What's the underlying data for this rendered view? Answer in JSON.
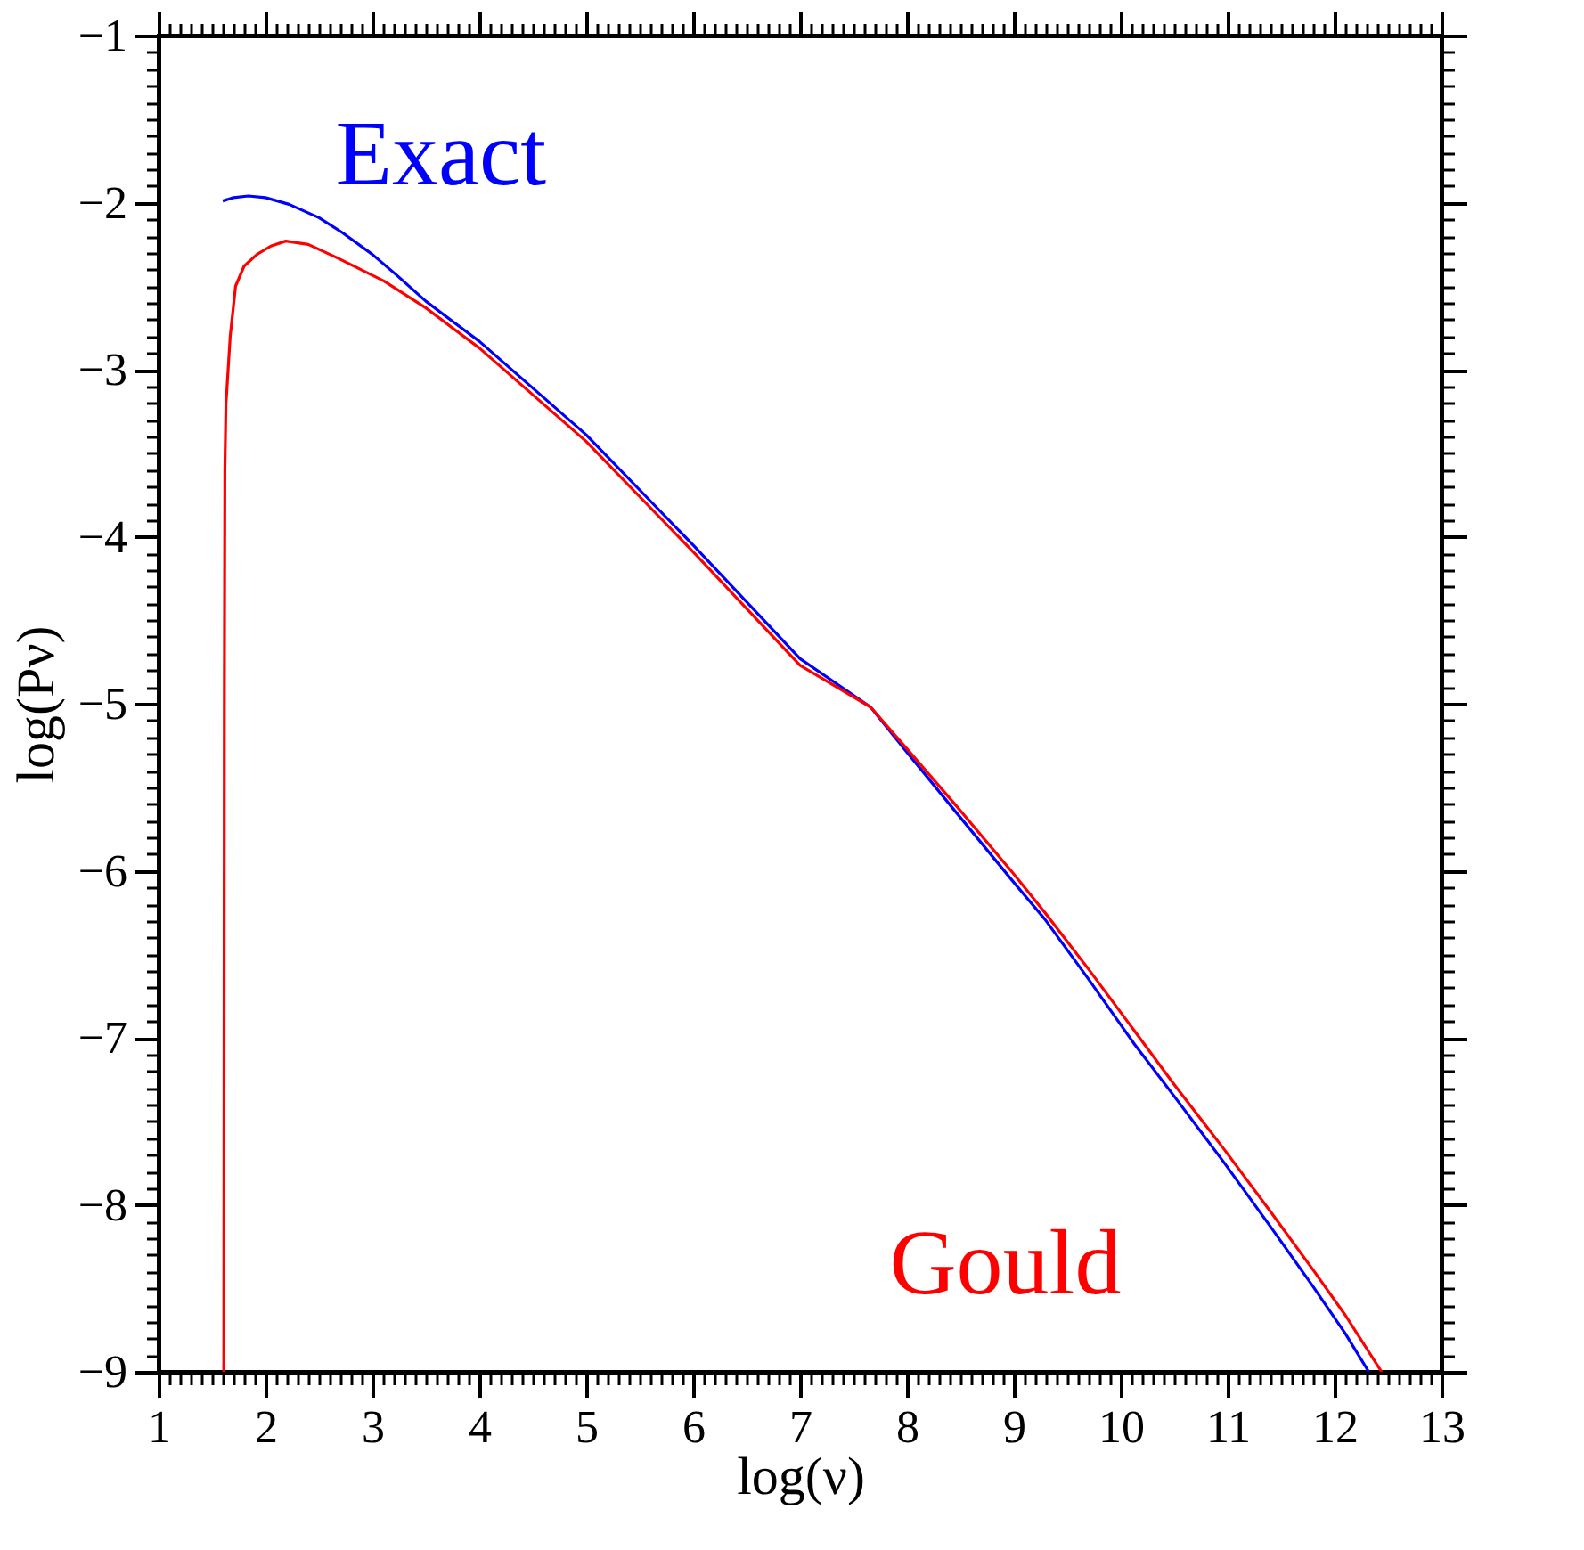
{
  "chart_data": {
    "type": "line",
    "xlabel": "log(ν)",
    "ylabel": "log(Pν)",
    "xlim": [
      1,
      13
    ],
    "ylim": [
      -9,
      -1
    ],
    "xticks": [
      1,
      2,
      3,
      4,
      5,
      6,
      7,
      8,
      9,
      10,
      11,
      12,
      13,
      {
        "value": 1.1,
        "label": null
      },
      {
        "value": 1.2,
        "label": null
      },
      {
        "value": 1.3,
        "label": null
      },
      {
        "value": 1.4,
        "label": null
      },
      {
        "value": 1.5,
        "label": null
      },
      {
        "value": 1.6,
        "label": null
      },
      {
        "value": 1.7,
        "label": null
      },
      {
        "value": 1.8,
        "label": null
      },
      {
        "value": 1.9,
        "label": null
      },
      {
        "value": 2.1,
        "label": null
      },
      {
        "value": 2.2,
        "label": null
      },
      {
        "value": 2.3,
        "label": null
      },
      {
        "value": 2.4,
        "label": null
      },
      {
        "value": 2.5,
        "label": null
      },
      {
        "value": 2.6,
        "label": null
      },
      {
        "value": 2.7,
        "label": null
      },
      {
        "value": 2.8,
        "label": null
      },
      {
        "value": 2.9,
        "label": null
      },
      {
        "value": 3.1,
        "label": null
      },
      {
        "value": 3.2,
        "label": null
      },
      {
        "value": 3.3,
        "label": null
      },
      {
        "value": 3.4,
        "label": null
      },
      {
        "value": 3.5,
        "label": null
      },
      {
        "value": 3.6,
        "label": null
      },
      {
        "value": 3.7,
        "label": null
      },
      {
        "value": 3.8,
        "label": null
      },
      {
        "value": 3.9,
        "label": null
      },
      {
        "value": 4.1,
        "label": null
      },
      {
        "value": 4.2,
        "label": null
      },
      {
        "value": 4.3,
        "label": null
      },
      {
        "value": 4.4,
        "label": null
      },
      {
        "value": 4.5,
        "label": null
      },
      {
        "value": 4.6,
        "label": null
      },
      {
        "value": 4.7,
        "label": null
      },
      {
        "value": 4.8,
        "label": null
      },
      {
        "value": 4.9,
        "label": null
      },
      {
        "value": 5.1,
        "label": null
      },
      {
        "value": 5.2,
        "label": null
      },
      {
        "value": 5.3,
        "label": null
      },
      {
        "value": 5.4,
        "label": null
      },
      {
        "value": 5.5,
        "label": null
      },
      {
        "value": 5.6,
        "label": null
      },
      {
        "value": 5.7,
        "label": null
      },
      {
        "value": 5.8,
        "label": null
      },
      {
        "value": 5.9,
        "label": null
      },
      {
        "value": 6.1,
        "label": null
      },
      {
        "value": 6.2,
        "label": null
      },
      {
        "value": 6.3,
        "label": null
      },
      {
        "value": 6.4,
        "label": null
      },
      {
        "value": 6.5,
        "label": null
      },
      {
        "value": 6.6,
        "label": null
      },
      {
        "value": 6.7,
        "label": null
      },
      {
        "value": 6.8,
        "label": null
      },
      {
        "value": 6.9,
        "label": null
      },
      {
        "value": 7.1,
        "label": null
      },
      {
        "value": 7.2,
        "label": null
      },
      {
        "value": 7.3,
        "label": null
      },
      {
        "value": 7.4,
        "label": null
      },
      {
        "value": 7.5,
        "label": null
      },
      {
        "value": 7.6,
        "label": null
      },
      {
        "value": 7.7,
        "label": null
      },
      {
        "value": 7.8,
        "label": null
      },
      {
        "value": 7.9,
        "label": null
      },
      {
        "value": 8.1,
        "label": null
      },
      {
        "value": 8.2,
        "label": null
      },
      {
        "value": 8.3,
        "label": null
      },
      {
        "value": 8.4,
        "label": null
      },
      {
        "value": 8.5,
        "label": null
      },
      {
        "value": 8.6,
        "label": null
      },
      {
        "value": 8.7,
        "label": null
      },
      {
        "value": 8.8,
        "label": null
      },
      {
        "value": 8.9,
        "label": null
      },
      {
        "value": 9.1,
        "label": null
      },
      {
        "value": 9.2,
        "label": null
      },
      {
        "value": 9.3,
        "label": null
      },
      {
        "value": 9.4,
        "label": null
      },
      {
        "value": 9.5,
        "label": null
      },
      {
        "value": 9.6,
        "label": null
      },
      {
        "value": 9.7,
        "label": null
      },
      {
        "value": 9.8,
        "label": null
      },
      {
        "value": 9.9,
        "label": null
      },
      {
        "value": 10.1,
        "label": null
      },
      {
        "value": 10.2,
        "label": null
      },
      {
        "value": 10.3,
        "label": null
      },
      {
        "value": 10.4,
        "label": null
      },
      {
        "value": 10.5,
        "label": null
      },
      {
        "value": 10.6,
        "label": null
      },
      {
        "value": 10.7,
        "label": null
      },
      {
        "value": 10.8,
        "label": null
      },
      {
        "value": 10.9,
        "label": null
      },
      {
        "value": 11.1,
        "label": null
      },
      {
        "value": 11.2,
        "label": null
      },
      {
        "value": 11.3,
        "label": null
      },
      {
        "value": 11.4,
        "label": null
      },
      {
        "value": 11.5,
        "label": null
      },
      {
        "value": 11.6,
        "label": null
      },
      {
        "value": 11.7,
        "label": null
      },
      {
        "value": 11.8,
        "label": null
      },
      {
        "value": 11.9,
        "label": null
      },
      {
        "value": 12.1,
        "label": null
      },
      {
        "value": 12.2,
        "label": null
      },
      {
        "value": 12.3,
        "label": null
      },
      {
        "value": 12.4,
        "label": null
      },
      {
        "value": 12.5,
        "label": null
      },
      {
        "value": 12.6,
        "label": null
      },
      {
        "value": 12.7,
        "label": null
      },
      {
        "value": 12.8,
        "label": null
      },
      {
        "value": 12.9,
        "label": null
      }
    ],
    "yticks": [
      -9,
      -8,
      -7,
      -6,
      -5,
      -4,
      -3,
      -2,
      -1,
      {
        "value": -8.9,
        "label": null
      },
      {
        "value": -8.8,
        "label": null
      },
      {
        "value": -8.7,
        "label": null
      },
      {
        "value": -8.6,
        "label": null
      },
      {
        "value": -8.5,
        "label": null
      },
      {
        "value": -8.4,
        "label": null
      },
      {
        "value": -8.3,
        "label": null
      },
      {
        "value": -8.2,
        "label": null
      },
      {
        "value": -8.1,
        "label": null
      },
      {
        "value": -7.9,
        "label": null
      },
      {
        "value": -7.8,
        "label": null
      },
      {
        "value": -7.7,
        "label": null
      },
      {
        "value": -7.6,
        "label": null
      },
      {
        "value": -7.5,
        "label": null
      },
      {
        "value": -7.4,
        "label": null
      },
      {
        "value": -7.3,
        "label": null
      },
      {
        "value": -7.2,
        "label": null
      },
      {
        "value": -7.1,
        "label": null
      },
      {
        "value": -6.9,
        "label": null
      },
      {
        "value": -6.8,
        "label": null
      },
      {
        "value": -6.7,
        "label": null
      },
      {
        "value": -6.6,
        "label": null
      },
      {
        "value": -6.5,
        "label": null
      },
      {
        "value": -6.4,
        "label": null
      },
      {
        "value": -6.3,
        "label": null
      },
      {
        "value": -6.2,
        "label": null
      },
      {
        "value": -6.1,
        "label": null
      },
      {
        "value": -5.9,
        "label": null
      },
      {
        "value": -5.8,
        "label": null
      },
      {
        "value": -5.7,
        "label": null
      },
      {
        "value": -5.6,
        "label": null
      },
      {
        "value": -5.5,
        "label": null
      },
      {
        "value": -5.4,
        "label": null
      },
      {
        "value": -5.3,
        "label": null
      },
      {
        "value": -5.2,
        "label": null
      },
      {
        "value": -5.1,
        "label": null
      },
      {
        "value": -4.9,
        "label": null
      },
      {
        "value": -4.8,
        "label": null
      },
      {
        "value": -4.7,
        "label": null
      },
      {
        "value": -4.6,
        "label": null
      },
      {
        "value": -4.5,
        "label": null
      },
      {
        "value": -4.4,
        "label": null
      },
      {
        "value": -4.3,
        "label": null
      },
      {
        "value": -4.2,
        "label": null
      },
      {
        "value": -4.1,
        "label": null
      },
      {
        "value": -3.9,
        "label": null
      },
      {
        "value": -3.8,
        "label": null
      },
      {
        "value": -3.7,
        "label": null
      },
      {
        "value": -3.6,
        "label": null
      },
      {
        "value": -3.5,
        "label": null
      },
      {
        "value": -3.4,
        "label": null
      },
      {
        "value": -3.3,
        "label": null
      },
      {
        "value": -3.2,
        "label": null
      },
      {
        "value": -3.1,
        "label": null
      },
      {
        "value": -2.9,
        "label": null
      },
      {
        "value": -2.8,
        "label": null
      },
      {
        "value": -2.7,
        "label": null
      },
      {
        "value": -2.6,
        "label": null
      },
      {
        "value": -2.5,
        "label": null
      },
      {
        "value": -2.4,
        "label": null
      },
      {
        "value": -2.3,
        "label": null
      },
      {
        "value": -2.2,
        "label": null
      },
      {
        "value": -2.1,
        "label": null
      },
      {
        "value": -1.9,
        "label": null
      },
      {
        "value": -1.8,
        "label": null
      },
      {
        "value": -1.7,
        "label": null
      },
      {
        "value": -1.6,
        "label": null
      },
      {
        "value": -1.5,
        "label": null
      },
      {
        "value": -1.4,
        "label": null
      },
      {
        "value": -1.3,
        "label": null
      },
      {
        "value": -1.2,
        "label": null
      },
      {
        "value": -1.1,
        "label": null
      }
    ],
    "grid": false,
    "line_style": "solid",
    "marker": "none",
    "series": [
      {
        "name": "Exact",
        "color": "#0000ff",
        "x": [
          1.6,
          1.7,
          1.84,
          2.0,
          2.22,
          2.5,
          2.72,
          3.0,
          3.22,
          3.5,
          4.0,
          4.5,
          5.0,
          5.5,
          6.0,
          6.5,
          7.0,
          7.66,
          8.0,
          8.46,
          9.0,
          9.29,
          9.7,
          10.13,
          10.5,
          10.97,
          11.4,
          11.8,
          12.1,
          12.32
        ],
        "values": [
          -1.99,
          -1.97,
          -1.96,
          -1.97,
          -2.01,
          -2.09,
          -2.18,
          -2.31,
          -2.43,
          -2.59,
          -2.83,
          -3.11,
          -3.39,
          -3.72,
          -4.05,
          -4.39,
          -4.73,
          -5.02,
          -5.29,
          -5.65,
          -6.07,
          -6.29,
          -6.65,
          -7.04,
          -7.35,
          -7.75,
          -8.13,
          -8.49,
          -8.77,
          -9.0
        ]
      },
      {
        "name": "Gould",
        "color": "#ff0000",
        "x": [
          1.61,
          1.615,
          1.62,
          1.63,
          1.67,
          1.72,
          1.8,
          1.92,
          2.05,
          2.19,
          2.4,
          2.67,
          3.11,
          3.5,
          4.0,
          4.5,
          5.0,
          5.5,
          6.0,
          6.5,
          7.0,
          7.66,
          8.0,
          8.46,
          9.0,
          9.29,
          9.7,
          10.13,
          10.5,
          10.97,
          11.4,
          11.8,
          12.1,
          12.44
        ],
        "values": [
          -9.0,
          -5.0,
          -3.6,
          -3.21,
          -2.8,
          -2.5,
          -2.38,
          -2.31,
          -2.26,
          -2.23,
          -2.25,
          -2.33,
          -2.47,
          -2.63,
          -2.87,
          -3.15,
          -3.43,
          -3.76,
          -4.09,
          -4.43,
          -4.77,
          -5.02,
          -5.27,
          -5.61,
          -6.02,
          -6.25,
          -6.59,
          -6.96,
          -7.28,
          -7.67,
          -8.04,
          -8.39,
          -8.66,
          -9.0
        ]
      }
    ]
  }
}
